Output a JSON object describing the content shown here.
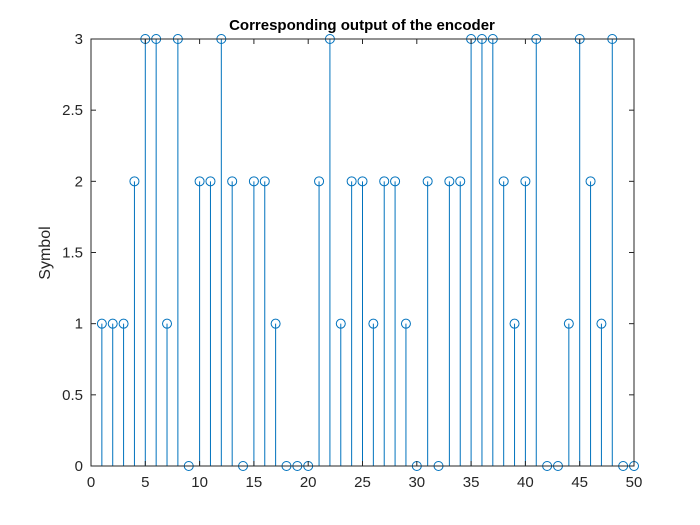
{
  "chart_data": {
    "type": "stem",
    "title": "Corresponding output of the encoder",
    "xlabel": "",
    "ylabel": "Symbol",
    "xlim": [
      0,
      50
    ],
    "ylim": [
      0,
      3
    ],
    "xticks": [
      0,
      5,
      10,
      15,
      20,
      25,
      30,
      35,
      40,
      45,
      50
    ],
    "yticks": [
      0,
      0.5,
      1,
      1.5,
      2,
      2.5,
      3
    ],
    "grid": false,
    "color": "#0072BD",
    "series": [
      {
        "x": [
          1,
          2,
          3,
          4,
          5,
          6,
          7,
          8,
          9,
          10,
          11,
          12,
          13,
          14,
          15,
          16,
          17,
          18,
          19,
          20,
          21,
          22,
          23,
          24,
          25,
          26,
          27,
          28,
          29,
          30,
          31,
          32,
          33,
          34,
          35,
          36,
          37,
          38,
          39,
          40,
          41,
          42,
          43,
          44,
          45,
          46,
          47,
          48,
          49,
          50
        ],
        "values": [
          1,
          1,
          1,
          2,
          3,
          3,
          1,
          3,
          0,
          2,
          2,
          3,
          2,
          0,
          2,
          2,
          1,
          0,
          0,
          0,
          2,
          3,
          1,
          2,
          2,
          1,
          2,
          2,
          1,
          0,
          2,
          0,
          2,
          2,
          3,
          3,
          3,
          2,
          1,
          2,
          3,
          0,
          0,
          1,
          3,
          2,
          1,
          3,
          0,
          0
        ]
      }
    ]
  }
}
